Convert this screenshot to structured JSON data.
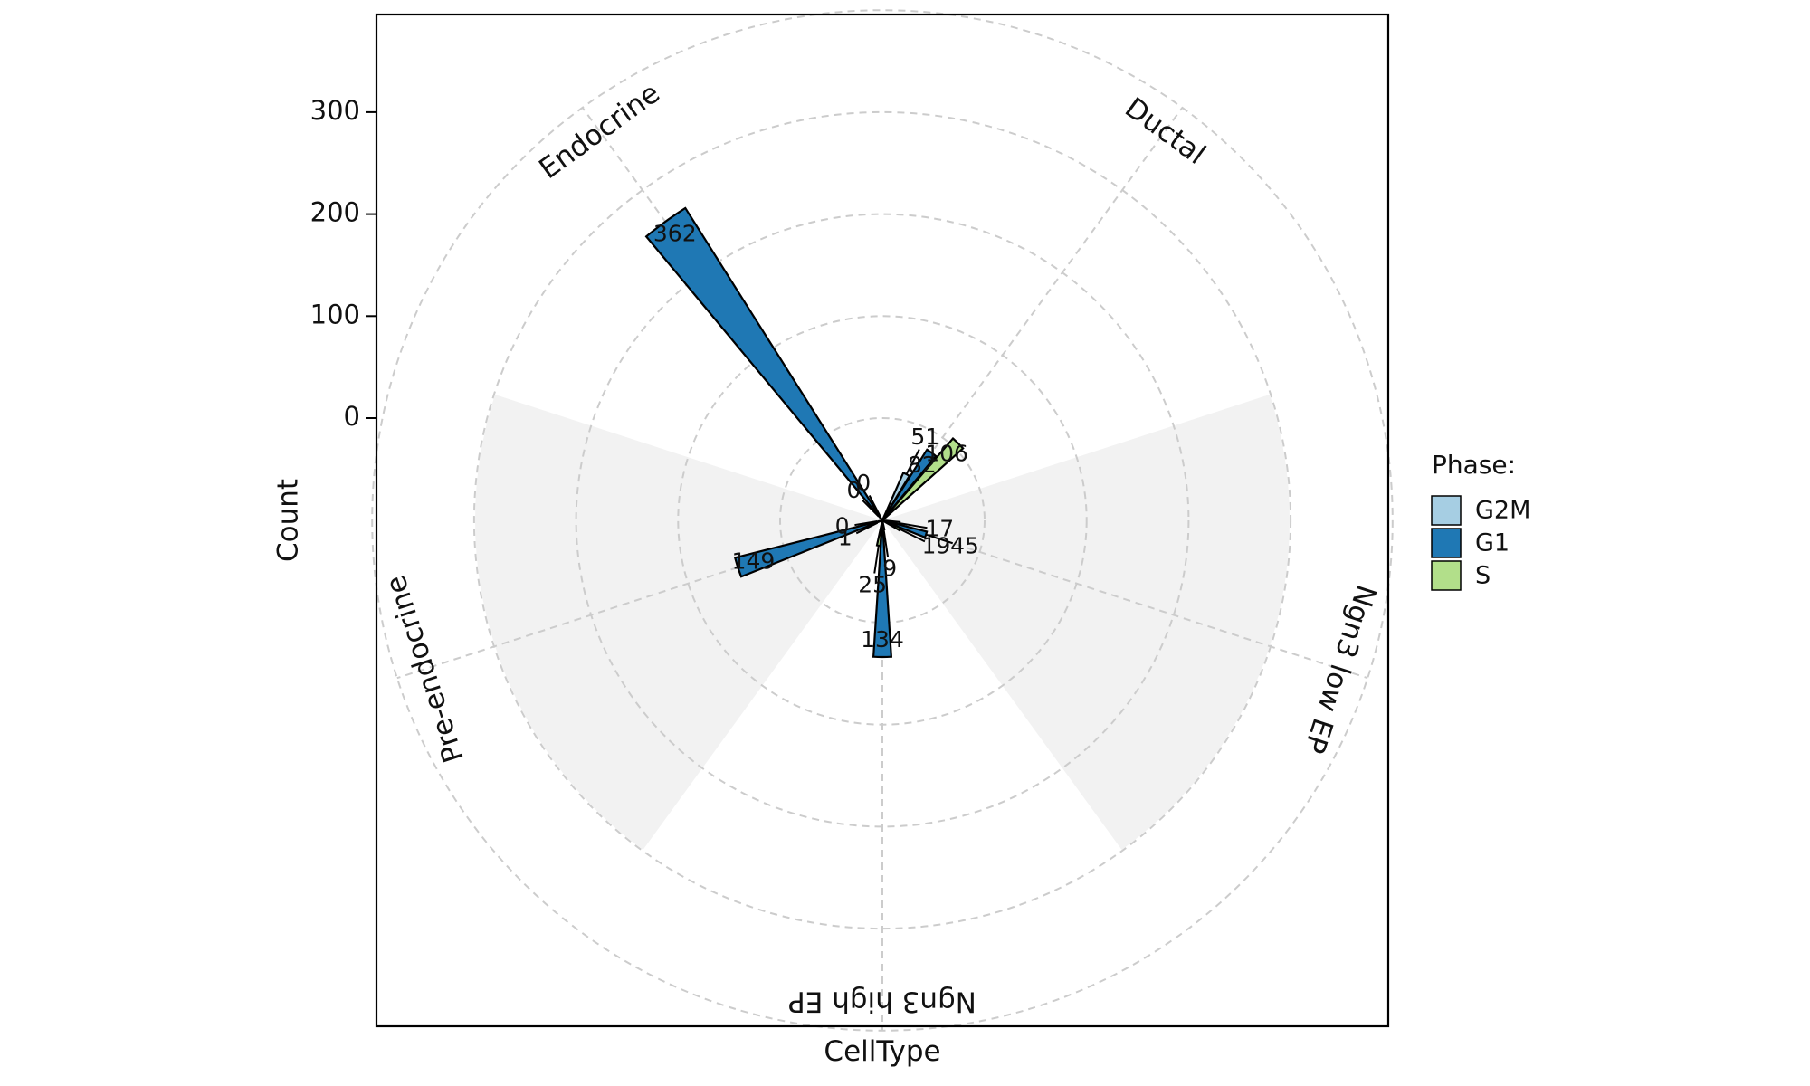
{
  "chart_data": {
    "type": "polar-bar",
    "title": "",
    "xlabel": "CellType",
    "ylabel": "Count",
    "yticks": [
      0,
      100,
      200,
      300
    ],
    "grid": true,
    "categories": [
      "Ductal",
      "Ngn3 low EP",
      "Ngn3 high EP",
      "Pre-endocrine",
      "Endocrine"
    ],
    "legend": {
      "title": "Phase:",
      "placement": "right"
    },
    "series": [
      {
        "name": "G2M",
        "color": "#A6CEE3",
        "values": [
          51,
          17,
          9,
          1,
          0
        ]
      },
      {
        "name": "G1",
        "color": "#1F78B4",
        "values": [
          82,
          45,
          134,
          149,
          362
        ]
      },
      {
        "name": "S",
        "color": "#B2DF8A",
        "values": [
          106,
          19,
          25,
          0,
          0
        ]
      }
    ],
    "shaded_categories": [
      "Ngn3 low EP",
      "Pre-endocrine"
    ],
    "colors": {
      "shade": "#f2f2f2",
      "grid": "#cccccc",
      "border": "#000000"
    }
  }
}
